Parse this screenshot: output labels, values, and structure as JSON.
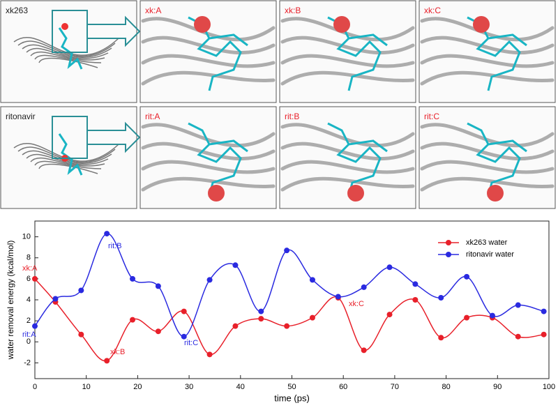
{
  "panels": [
    [
      "xk263",
      "xk:A",
      "xk:B",
      "xk:C"
    ],
    [
      "ritonavir",
      "rit:A",
      "rit:B",
      "rit:C"
    ]
  ],
  "chart_data": {
    "type": "line",
    "x_label": "time (ps)",
    "y_label": "water removal energy (kcal/mol)",
    "x": [
      0,
      4,
      9,
      14,
      19,
      24,
      29,
      34,
      39,
      44,
      49,
      54,
      59,
      64,
      69,
      74,
      79,
      84,
      89,
      94,
      99
    ],
    "series": [
      {
        "name": "xk263 water",
        "color": "#e8202a",
        "values": [
          6,
          3.8,
          0.7,
          -1.8,
          2.1,
          1.0,
          2.9,
          -1.2,
          1.5,
          2.2,
          1.5,
          2.3,
          4.2,
          -0.8,
          2.6,
          4.0,
          0.4,
          2.3,
          2.3,
          0.5,
          0.7
        ]
      },
      {
        "name": "ritonavir water",
        "color": "#2a2ae0",
        "values": [
          1.5,
          4.1,
          4.9,
          10.3,
          6.0,
          5.3,
          0.5,
          5.9,
          7.3,
          2.9,
          8.7,
          5.9,
          4.3,
          5.2,
          7.1,
          5.5,
          4.2,
          6.2,
          2.5,
          3.5,
          2.9
        ]
      }
    ],
    "annotations": [
      {
        "text": "xk:A",
        "color": "#e8202a"
      },
      {
        "text": "xk:B",
        "color": "#e8202a"
      },
      {
        "text": "xk:C",
        "color": "#e8202a"
      },
      {
        "text": "rit:A",
        "color": "#2a2ae0"
      },
      {
        "text": "rit:B",
        "color": "#2a2ae0"
      },
      {
        "text": "rit:C",
        "color": "#2a2ae0"
      }
    ],
    "xlim": [
      0,
      100
    ],
    "xticks": [
      0,
      10,
      20,
      30,
      40,
      50,
      60,
      70,
      80,
      90,
      100
    ],
    "ylim": [
      -3.5,
      11.5
    ],
    "yticks": [
      -2,
      0,
      2,
      4,
      6,
      8,
      10
    ],
    "legend": "upper right"
  }
}
